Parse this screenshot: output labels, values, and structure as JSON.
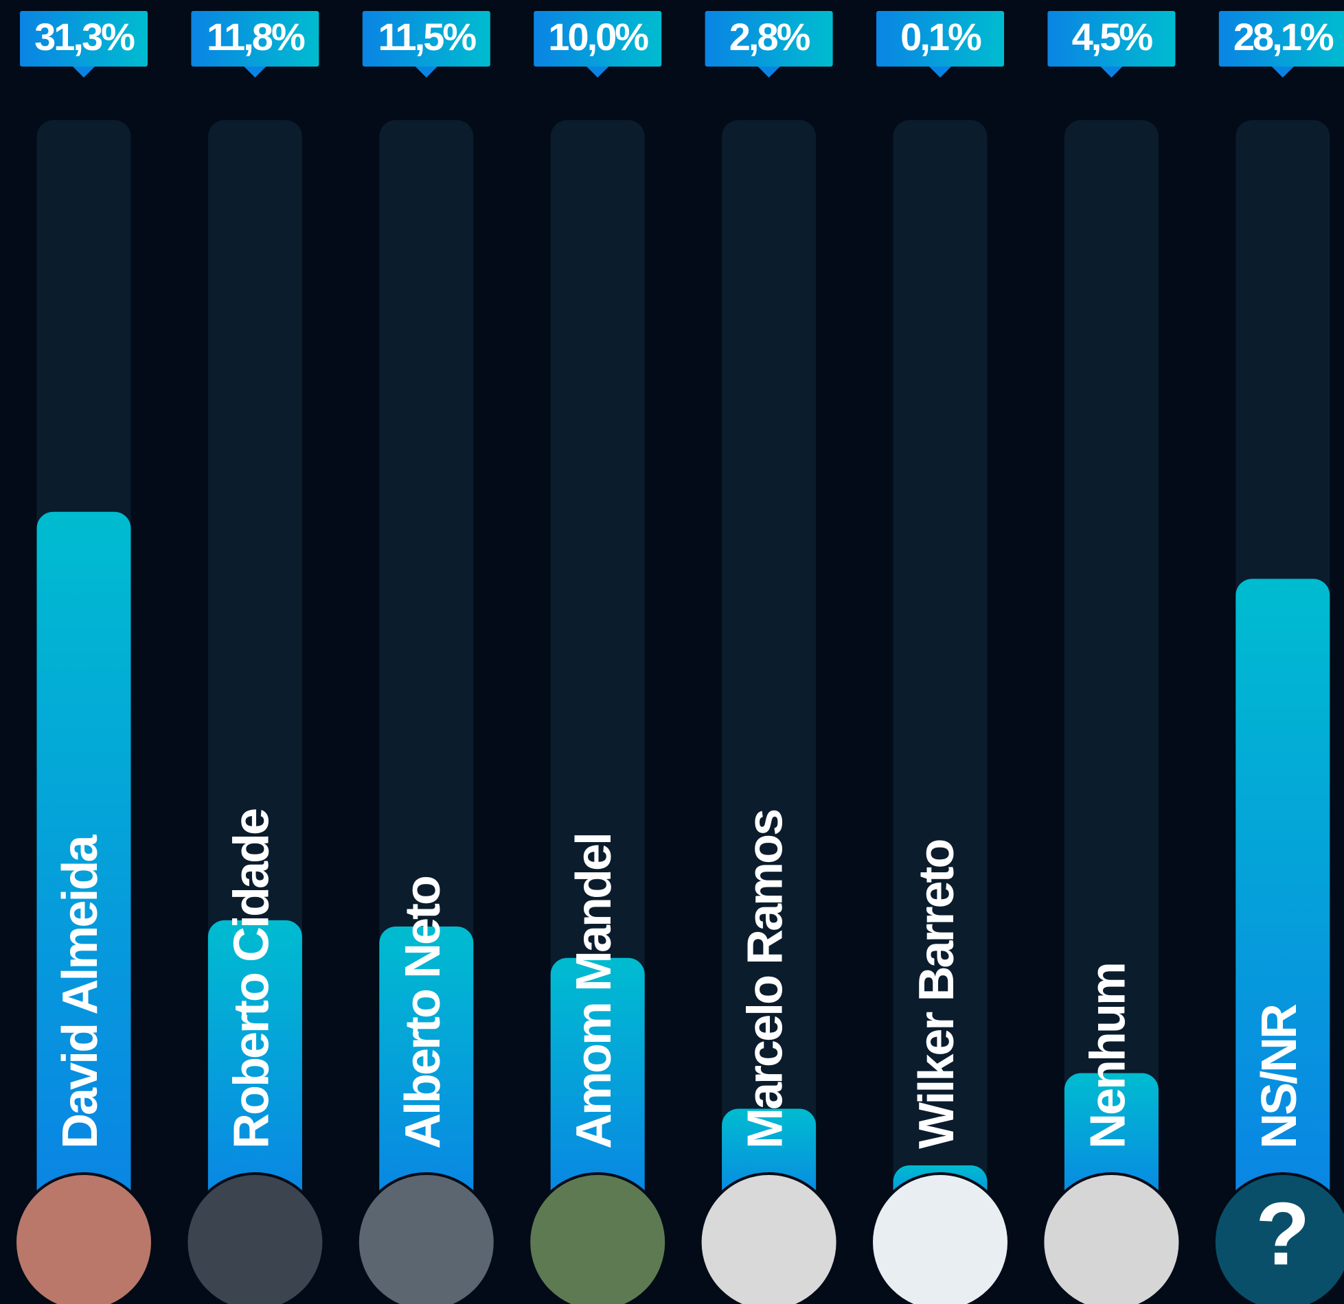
{
  "chart_data": {
    "type": "bar",
    "categories": [
      "David Almeida",
      "Roberto Cidade",
      "Alberto Neto",
      "Amom Mandel",
      "Marcelo Ramos",
      "Wilker Barreto",
      "Nenhum",
      "NS/NR"
    ],
    "values": [
      31.3,
      11.8,
      11.5,
      10.0,
      2.8,
      0.1,
      4.5,
      28.1
    ],
    "value_labels": [
      "31,3%",
      "11,8%",
      "11,5%",
      "10,0%",
      "2,8%",
      "0,1%",
      "4,5%",
      "28,1%"
    ],
    "ylim": [
      0,
      50
    ],
    "color_top": "#00bcd0",
    "color_bottom": "#0a84e4",
    "avatar_colors": [
      "#b9786a",
      "#3c4450",
      "#5b6670",
      "#5e7a52",
      "#d9d9d9",
      "#e8eef2",
      "#d6d6d6",
      "#0a4f6a"
    ],
    "no_answer_icon": "?"
  }
}
